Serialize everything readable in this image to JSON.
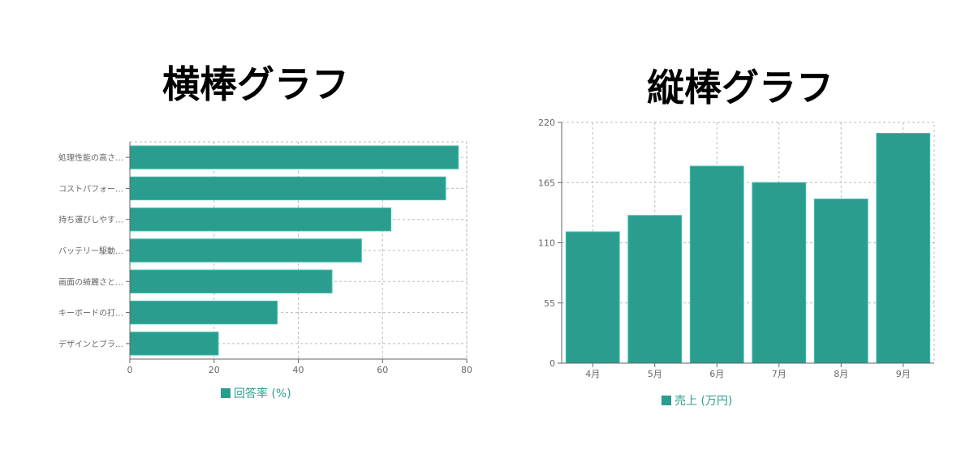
{
  "chart_data": [
    {
      "type": "bar",
      "orientation": "horizontal",
      "title": "横棒グラフ",
      "categories": [
        "処理性能の高さ…",
        "コストパフォー…",
        "持ち運びしやす…",
        "バッテリー駆動…",
        "画面の綺麗さと…",
        "キーボードの打…",
        "デザインとブラ…"
      ],
      "series": [
        {
          "name": "回答率 (%)",
          "values": [
            78,
            75,
            62,
            55,
            48,
            35,
            21
          ]
        }
      ],
      "xlim": [
        0,
        80
      ],
      "xticks": [
        "0",
        "20",
        "40",
        "60",
        "80"
      ],
      "grid": true,
      "legend": "bottom",
      "color": "#2a9d8f"
    },
    {
      "type": "bar",
      "orientation": "vertical",
      "title": "縦棒グラフ",
      "categories": [
        "4月",
        "5月",
        "6月",
        "7月",
        "8月",
        "9月"
      ],
      "series": [
        {
          "name": "売上 (万円)",
          "values": [
            120,
            135,
            180,
            165,
            150,
            210
          ]
        }
      ],
      "ylim": [
        0,
        220
      ],
      "yticks": [
        "0",
        "55",
        "110",
        "165",
        "220"
      ],
      "grid": true,
      "legend": "bottom",
      "color": "#2a9d8f"
    }
  ]
}
